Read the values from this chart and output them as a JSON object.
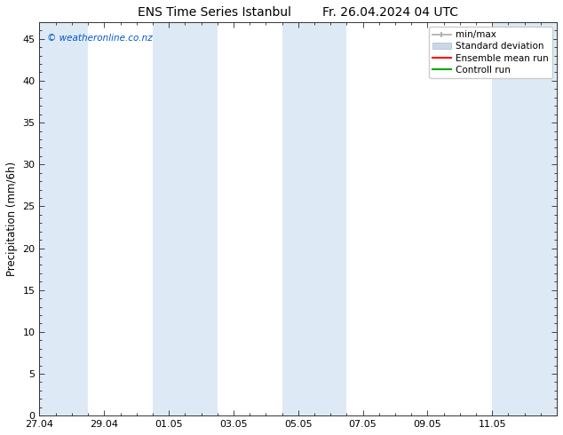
{
  "title_left": "ENS Time Series Istanbul",
  "title_right": "Fr. 26.04.2024 04 UTC",
  "ylabel": "Precipitation (mm/6h)",
  "ylim": [
    0,
    47
  ],
  "yticks": [
    0,
    5,
    10,
    15,
    20,
    25,
    30,
    35,
    40,
    45
  ],
  "background_color": "#ffffff",
  "plot_bg_color": "#ffffff",
  "watermark": "© weatheronline.co.nz",
  "watermark_color": "#0055cc",
  "legend_entries": [
    "min/max",
    "Standard deviation",
    "Ensemble mean run",
    "Controll run"
  ],
  "minmax_color": "#aaaaaa",
  "std_color": "#c8d8e8",
  "ensemble_color": "#ff0000",
  "control_color": "#00aa00",
  "shaded_band_color": "#ddeaf5",
  "x_tick_labels": [
    "27.04",
    "29.04",
    "01.05",
    "03.05",
    "05.05",
    "07.05",
    "09.05",
    "11.05"
  ],
  "x_tick_positions": [
    0,
    2,
    4,
    6,
    8,
    10,
    12,
    14
  ],
  "total_days": 16,
  "shaded_regions": [
    [
      0.0,
      1.5
    ],
    [
      3.5,
      5.5
    ],
    [
      7.5,
      9.5
    ],
    [
      14.0,
      16.0
    ]
  ],
  "title_fontsize": 10,
  "tick_fontsize": 8,
  "legend_fontsize": 7.5,
  "ylabel_fontsize": 8.5
}
